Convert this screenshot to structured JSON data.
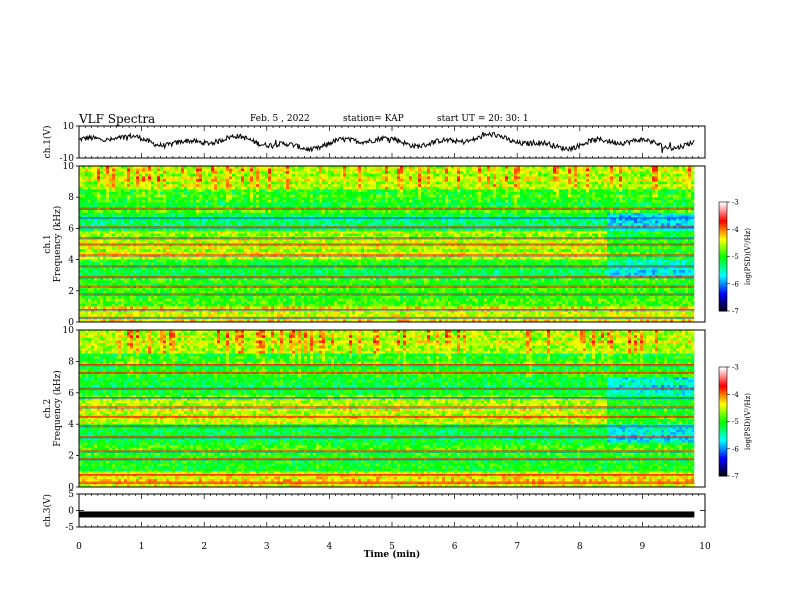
{
  "header": {
    "title": "VLF Spectra",
    "date": "Feb. 5 , 2022",
    "station": "station= KAP",
    "start_ut": "start UT =   20: 30: 1"
  },
  "chart_data": [
    {
      "type": "line",
      "panel": "ch1-waveform",
      "ylabel": "ch.1(V)",
      "ylim": [
        -10,
        10
      ],
      "yticks": [
        "10",
        "-10"
      ],
      "xlim": [
        0,
        10
      ],
      "x_extent": [
        0,
        9.83
      ],
      "value_range": [
        -7,
        5
      ],
      "color": "#000000"
    },
    {
      "type": "heatmap",
      "panel": "ch1-spectrogram",
      "ylabel_channel": "ch.1",
      "ylabel": "Frequency (kHz)",
      "ylim": [
        0,
        10
      ],
      "yticks": [
        "0",
        "2",
        "4",
        "6",
        "8",
        "10"
      ],
      "xlim": [
        0,
        10
      ],
      "x_extent": [
        0,
        9.83
      ],
      "colorbar": {
        "label": "log(PSD)(V²/Hz)",
        "range": [
          -7,
          -3
        ],
        "ticks": [
          "-3",
          "-4",
          "-5",
          "-6",
          "-7"
        ]
      },
      "change_at_min": 8.4
    },
    {
      "type": "heatmap",
      "panel": "ch2-spectrogram",
      "ylabel_channel": "ch.2",
      "ylabel": "Frequency (kHz)",
      "ylim": [
        0,
        10
      ],
      "yticks": [
        "0",
        "2",
        "4",
        "6",
        "8",
        "10"
      ],
      "xlim": [
        0,
        10
      ],
      "x_extent": [
        0,
        9.83
      ],
      "colorbar": {
        "label": "log(PSD)(V²/Hz)",
        "range": [
          -7,
          -3
        ],
        "ticks": [
          "-3",
          "-4",
          "-5",
          "-6",
          "-7"
        ]
      },
      "change_at_min": 8.4
    },
    {
      "type": "line",
      "panel": "ch3-waveform",
      "ylabel": "ch.3(V)",
      "ylim": [
        -5,
        5
      ],
      "yticks": [
        "5",
        "0",
        "-5"
      ],
      "xlim": [
        0,
        10
      ],
      "x_extent": [
        0,
        9.83
      ],
      "value": -1.2,
      "color": "#000000"
    }
  ],
  "xaxis": {
    "label": "Time (min)",
    "ticks": [
      "0",
      "1",
      "2",
      "3",
      "4",
      "5",
      "6",
      "7",
      "8",
      "9",
      "10"
    ]
  },
  "colormap": [
    "#000000",
    "#0000ff",
    "#00ffff",
    "#00ff00",
    "#ffff00",
    "#ff0000",
    "#ffffff"
  ]
}
